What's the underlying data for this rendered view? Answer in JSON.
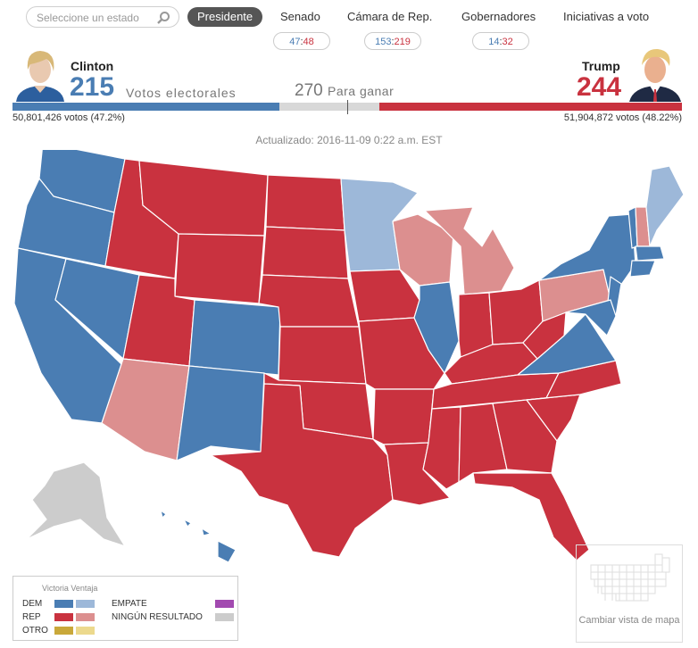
{
  "search": {
    "placeholder": "Seleccione un estado"
  },
  "tabs": [
    {
      "label": "Presidente"
    },
    {
      "label": "Senado"
    },
    {
      "label": "Cámara de Rep."
    },
    {
      "label": "Gobernadores"
    },
    {
      "label": "Iniciativas a voto"
    }
  ],
  "pills": {
    "senado": {
      "dem": "47",
      "rep": "48"
    },
    "camara": {
      "dem": "153",
      "rep": "219"
    },
    "gobernadores": {
      "dem": "14",
      "rep": "32"
    }
  },
  "clinton": {
    "name": "Clinton",
    "electoral": "215",
    "popular": "50,801,426 votos (47.2%)"
  },
  "trump": {
    "name": "Trump",
    "electoral": "244",
    "popular": "51,904,872 votos (48.22%)"
  },
  "ev_label": "Votos electorales",
  "to_win": {
    "number": "270",
    "label": "Para ganar"
  },
  "updated": "Actualizado: 2016-11-09 0:22 a.m. EST",
  "colors": {
    "dem": "#4a7db3",
    "dem_lean": "#9db8d9",
    "rep": "#c9323f",
    "rep_lean": "#dc8f8f",
    "otro": "#c9a83a",
    "otro_lean": "#ecd98d",
    "empate": "#a24ab0",
    "ninguno": "#cccccc"
  },
  "legend": {
    "title": "Victoria Ventaja",
    "dem": "DEM",
    "rep": "REP",
    "otro": "OTRO",
    "empate": "EMPATE",
    "ninguno": "NINGÚN RESULTADO"
  },
  "map_view": {
    "label": "Cambiar vista de mapa"
  }
}
